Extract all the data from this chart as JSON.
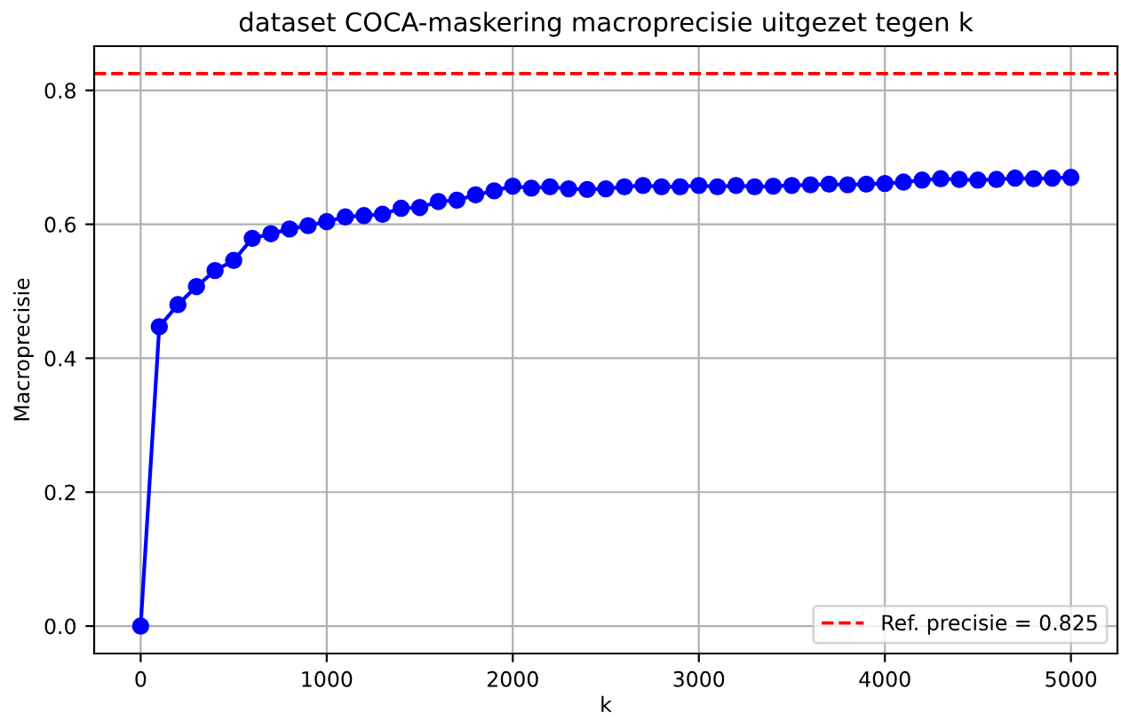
{
  "chart_data": {
    "type": "line",
    "title": "dataset COCA-maskering macroprecisie uitgezet tegen k",
    "xlabel": "k",
    "ylabel": "Macroprecisie",
    "x": [
      0,
      100,
      200,
      300,
      400,
      500,
      600,
      700,
      800,
      900,
      1000,
      1100,
      1200,
      1300,
      1400,
      1500,
      1600,
      1700,
      1800,
      1900,
      2000,
      2100,
      2200,
      2300,
      2400,
      2500,
      2600,
      2700,
      2800,
      2900,
      3000,
      3100,
      3200,
      3300,
      3400,
      3500,
      3600,
      3700,
      3800,
      3900,
      4000,
      4100,
      4200,
      4300,
      4400,
      4500,
      4600,
      4700,
      4800,
      4900,
      5000
    ],
    "series": [
      {
        "color": "#0000ff",
        "values": [
          0,
          0.447,
          0.48,
          0.507,
          0.531,
          0.546,
          0.579,
          0.586,
          0.593,
          0.598,
          0.604,
          0.611,
          0.613,
          0.615,
          0.624,
          0.625,
          0.634,
          0.636,
          0.644,
          0.65,
          0.657,
          0.654,
          0.656,
          0.653,
          0.652,
          0.653,
          0.656,
          0.658,
          0.656,
          0.656,
          0.658,
          0.656,
          0.658,
          0.656,
          0.657,
          0.658,
          0.659,
          0.66,
          0.659,
          0.66,
          0.661,
          0.663,
          0.666,
          0.668,
          0.667,
          0.666,
          0.667,
          0.669,
          0.668,
          0.669,
          0.67
        ]
      }
    ],
    "ref_lines": [
      {
        "axis": "y",
        "value": 0.825,
        "label": "Ref. precisie = 0.825",
        "color": "#ff0000",
        "line_style": "dashed"
      }
    ],
    "xlim": [
      -250,
      5250
    ],
    "ylim": [
      -0.041,
      0.866
    ],
    "xticks": [
      0,
      1000,
      2000,
      3000,
      4000,
      5000
    ],
    "yticks": [
      {
        "value": 0,
        "label": "0.0"
      },
      0.2,
      0.4,
      0.6,
      0.8
    ],
    "grid": true,
    "legend": "bottom right",
    "marker": "circle",
    "line_style": "solid"
  }
}
